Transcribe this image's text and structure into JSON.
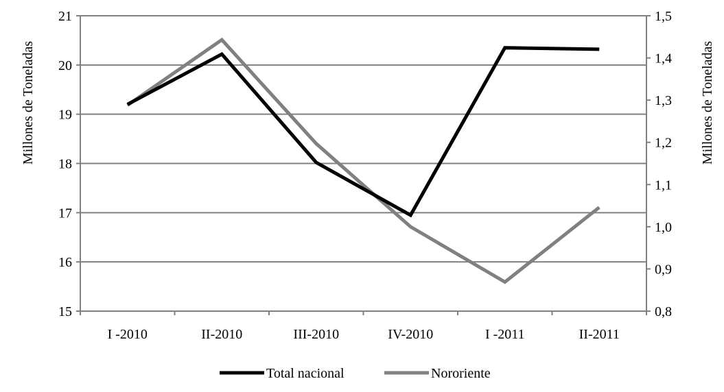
{
  "chart_data": {
    "type": "line",
    "categories": [
      "I -2010",
      "II-2010",
      "III-2010",
      "IV-2010",
      "I -2011",
      "II-2011"
    ],
    "ylabel_left": "Millones de Toneladas",
    "ylabel_right": "Millones de Toneladas",
    "ylim_left": [
      15,
      21
    ],
    "ylim_right": [
      0.8,
      1.5
    ],
    "yticks_left": [
      "15",
      "16",
      "17",
      "18",
      "19",
      "20",
      "21"
    ],
    "yticks_right": [
      "0,8",
      "0,9",
      "1,0",
      "1,1",
      "1,2",
      "1,3",
      "1,4",
      "1,5"
    ],
    "grid": true,
    "legend_position": "bottom",
    "series": [
      {
        "name": "Total nacional",
        "axis": "left",
        "color": "#000000",
        "values": [
          19.2,
          20.22,
          18.02,
          16.95,
          20.35,
          20.32
        ]
      },
      {
        "name": "Nororiente",
        "axis": "right",
        "color": "#808080",
        "values": [
          1.288,
          1.443,
          1.197,
          1.0,
          0.869,
          1.046
        ]
      }
    ]
  }
}
